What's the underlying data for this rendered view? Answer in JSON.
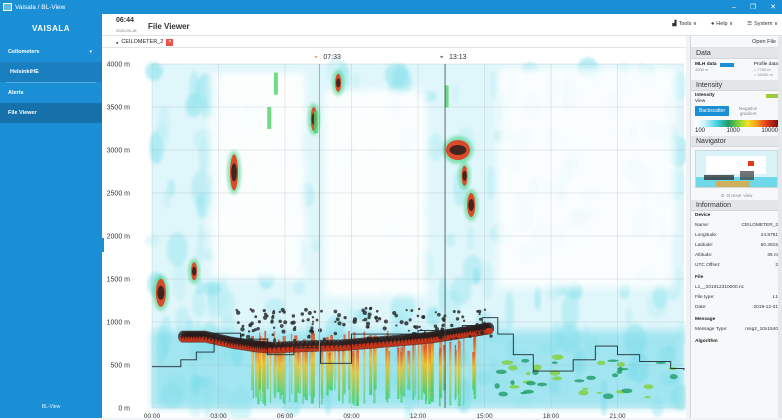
{
  "window": {
    "title": "Vaisala / BL-View",
    "controls": [
      "–",
      "❐",
      "✕"
    ]
  },
  "sidebar": {
    "logo": "VAISALA",
    "items": [
      {
        "label": "Ceilometers",
        "chevron": "▾"
      },
      {
        "label": "HelsinkiHE"
      },
      {
        "label": "Alerts"
      },
      {
        "label": "File Viewer"
      }
    ],
    "footer": "BL-View"
  },
  "header": {
    "time": "06:44",
    "date": "2020-09-18",
    "title": "File Viewer",
    "menus": [
      {
        "icon": "tools-icon",
        "label": "Tools ∨"
      },
      {
        "icon": "help-icon",
        "label": "Help ∨"
      },
      {
        "icon": "system-icon",
        "label": "System ∨"
      }
    ]
  },
  "tab": {
    "label": "CEILOMETER_2",
    "close": "×"
  },
  "chart_data": {
    "type": "heatmap",
    "title": "",
    "xlabel": "",
    "ylabel": "",
    "y_ticks": [
      "4000 m",
      "3500 m",
      "3000 m",
      "2500 m",
      "2000 m",
      "1500 m",
      "1000 m",
      "500 m",
      "0 m"
    ],
    "y_values": [
      4000,
      3500,
      3000,
      2500,
      2000,
      1500,
      1000,
      500,
      0
    ],
    "ylim": [
      0,
      4000
    ],
    "x_ticks": [
      "00:00",
      "03:00",
      "06:00",
      "09:00",
      "12:00",
      "15:00",
      "18:00",
      "21:00"
    ],
    "x_hours": [
      0,
      3,
      6,
      9,
      12,
      15,
      18,
      21
    ],
    "xlim_hours": [
      0,
      24
    ],
    "markers": [
      {
        "label": "07:33",
        "hour": 7.55,
        "color": "#e58a3a"
      },
      {
        "label": "13:13",
        "hour": 13.22,
        "color": "#444444"
      }
    ],
    "colorscale": [
      "#ffffff",
      "#c7f1f7",
      "#44d0e6",
      "#1f9c69",
      "#7fd036",
      "#eee324",
      "#f5a021",
      "#e23b1b",
      "#7a1010"
    ],
    "mlh_step": [
      [
        0,
        480
      ],
      [
        1.3,
        560
      ],
      [
        2.0,
        650
      ],
      [
        2.8,
        870
      ],
      [
        4.0,
        800
      ],
      [
        5.2,
        620
      ],
      [
        6.4,
        700
      ],
      [
        7.6,
        520
      ],
      [
        9.0,
        860
      ],
      [
        12.0,
        900
      ],
      [
        14.0,
        960
      ],
      [
        14.9,
        1050
      ],
      [
        15.6,
        860
      ],
      [
        16.3,
        620
      ],
      [
        17.2,
        430
      ],
      [
        19.0,
        560
      ],
      [
        20.0,
        720
      ],
      [
        21.0,
        620
      ],
      [
        22.0,
        540
      ],
      [
        23.4,
        460
      ],
      [
        24,
        440
      ]
    ]
  },
  "panel": {
    "open_file": "Open File",
    "data": {
      "head": "Data",
      "mlh_label": "MLH data",
      "mlh_sub": "4000 m",
      "profile_label": "Profile data",
      "profile_opts": [
        "7700 m",
        "15400 m"
      ]
    },
    "intensity": {
      "head": "Intensity",
      "label": "Intensity",
      "view": "View",
      "backscatter": "Backscatter",
      "negative": "Negative gradient",
      "scale": [
        "100",
        "1000",
        "10000"
      ]
    },
    "navigator": {
      "head": "Navigator",
      "buttons": [
        "⊡",
        "⊡ reset",
        "view"
      ]
    },
    "information": {
      "head": "Information",
      "device_head": "Device",
      "device": [
        {
          "k": "Name:",
          "v": "CEILOMETER_2"
        },
        {
          "k": "Longitude:",
          "v": "24.8781"
        },
        {
          "k": "Latitude:",
          "v": "60.2815"
        },
        {
          "k": "Altitude:",
          "v": "35 m"
        },
        {
          "k": "UTC Offset:",
          "v": "2"
        }
      ],
      "file_head": "File",
      "file_name": "L1__201912310000.nc",
      "file": [
        {
          "k": "File type:",
          "v": "L1"
        },
        {
          "k": "Date:",
          "v": "2019-12-31"
        }
      ],
      "message_head": "Message",
      "message": [
        {
          "k": "Message Type:",
          "v": "msg2_10x1540"
        }
      ],
      "algorithm_head": "Algorithm"
    }
  }
}
